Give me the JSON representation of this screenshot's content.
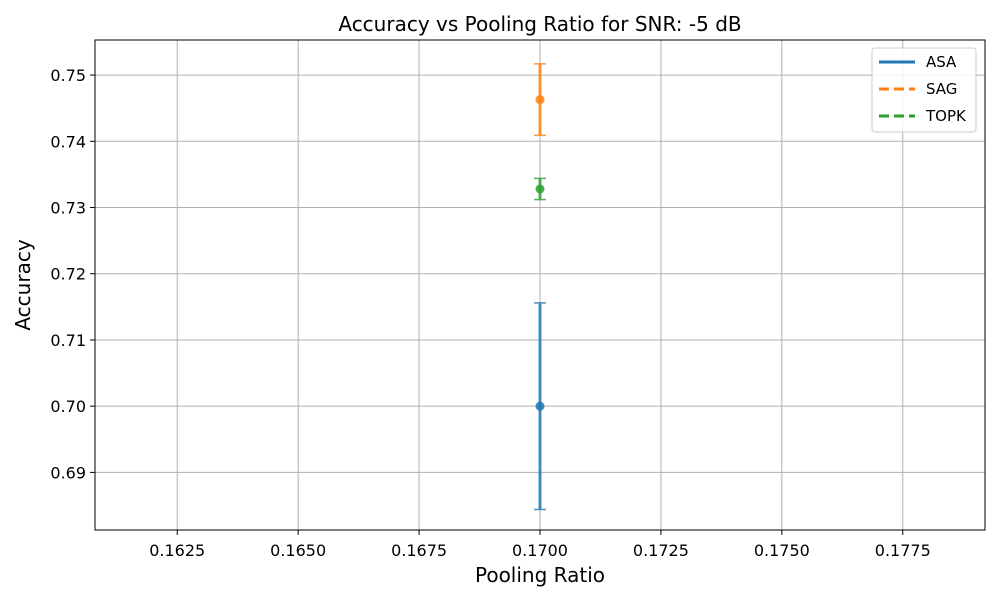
{
  "chart_data": {
    "type": "scatter",
    "title": "Accuracy vs Pooling Ratio for SNR: -5 dB",
    "xlabel": "Pooling Ratio",
    "ylabel": "Accuracy",
    "xlim": [
      0.1608,
      0.1792
    ],
    "ylim": [
      0.6813,
      0.7553
    ],
    "xticks": [
      "0.1625",
      "0.1650",
      "0.1675",
      "0.1700",
      "0.1725",
      "0.1750",
      "0.1775"
    ],
    "xtick_values": [
      0.1625,
      0.165,
      0.1675,
      0.17,
      0.1725,
      0.175,
      0.1775
    ],
    "yticks": [
      "0.69",
      "0.70",
      "0.71",
      "0.72",
      "0.73",
      "0.74",
      "0.75"
    ],
    "ytick_values": [
      0.69,
      0.7,
      0.71,
      0.72,
      0.73,
      0.74,
      0.75
    ],
    "grid": true,
    "legend_position": "top-right",
    "series": [
      {
        "name": "ASA",
        "color": "#1f77b4",
        "line_style": "solid",
        "x": [
          0.17
        ],
        "y": [
          0.7
        ],
        "error": [
          0.0156
        ]
      },
      {
        "name": "SAG",
        "color": "#ff7f0e",
        "line_style": "dashed",
        "x": [
          0.17
        ],
        "y": [
          0.7463
        ],
        "error": [
          0.0054
        ]
      },
      {
        "name": "TOPK",
        "color": "#2ca02c",
        "line_style": "dashed",
        "x": [
          0.17
        ],
        "y": [
          0.7328
        ],
        "error": [
          0.0016
        ]
      }
    ]
  }
}
